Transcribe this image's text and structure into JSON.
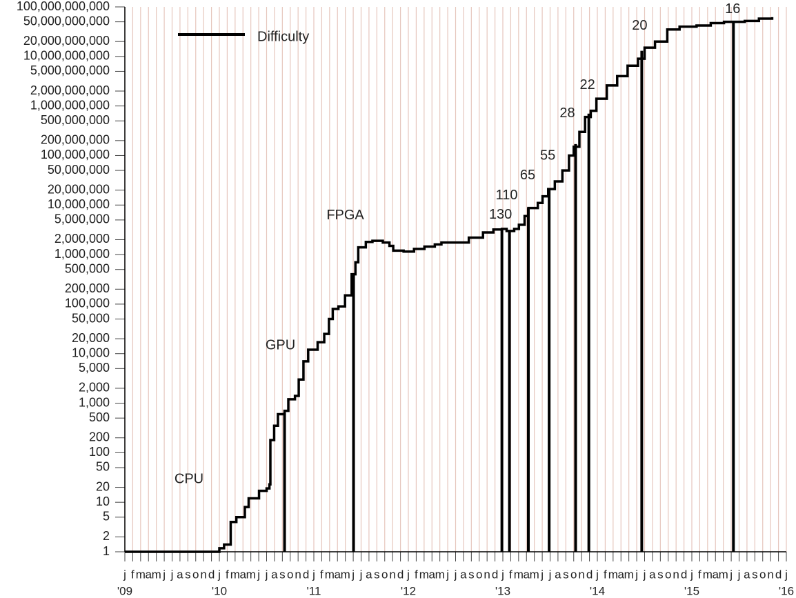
{
  "chart_data": {
    "type": "line",
    "step": "post",
    "log_y": true,
    "grid": true,
    "grid_color": "#e6c6bd",
    "legend": "upper left",
    "xlim": [
      2009,
      2016
    ],
    "ylim": [
      1,
      100000000000
    ],
    "x": [
      2009.0,
      2010.0,
      2010.05,
      2010.12,
      2010.18,
      2010.27,
      2010.31,
      2010.39,
      2010.42,
      2010.5,
      2010.53,
      2010.54,
      2010.58,
      2010.62,
      2010.69,
      2010.73,
      2010.8,
      2010.84,
      2010.89,
      2010.94,
      2011.04,
      2011.11,
      2011.16,
      2011.2,
      2011.26,
      2011.33,
      2011.4,
      2011.44,
      2011.47,
      2011.55,
      2011.62,
      2011.73,
      2011.8,
      2011.84,
      2011.95,
      2012.06,
      2012.17,
      2012.28,
      2012.35,
      2012.5,
      2012.64,
      2012.79,
      2012.9,
      2012.99,
      2013.04,
      2013.12,
      2013.17,
      2013.23,
      2013.27,
      2013.37,
      2013.42,
      2013.48,
      2013.55,
      2013.63,
      2013.7,
      2013.75,
      2013.81,
      2013.87,
      2013.93,
      2013.99,
      2014.1,
      2014.21,
      2014.32,
      2014.43,
      2014.5,
      2014.61,
      2014.74,
      2014.87,
      2015.05,
      2015.2,
      2015.34,
      2015.44,
      2015.56,
      2015.71,
      2015.85
    ],
    "series": [
      {
        "name": "Difficulty",
        "color": "#000000",
        "values": [
          1,
          1.18,
          1.4,
          4,
          5,
          8,
          12,
          12,
          17,
          19,
          23,
          180,
          350,
          600,
          700,
          1200,
          1400,
          3000,
          7000,
          12000,
          17000,
          25000,
          50000,
          80000,
          90000,
          150000,
          400000,
          700000,
          1400000,
          1800000,
          1900000,
          1750000,
          1500000,
          1200000,
          1150000,
          1300000,
          1450000,
          1600000,
          1750000,
          1750000,
          2200000,
          2800000,
          3200000,
          3300000,
          3000000,
          3300000,
          4000000,
          6000000,
          8700000,
          11000000,
          15000000,
          21000000,
          30000000,
          50000000,
          100000000,
          150000000,
          300000000,
          600000000,
          800000000,
          1400000000,
          2600000000,
          4000000000,
          6500000000,
          9000000000,
          15000000000,
          20000000000,
          35000000000,
          40000000000,
          42000000000,
          47000000000,
          50000000000,
          50000000000,
          52000000000,
          58000000000,
          62000000000
        ]
      }
    ],
    "annotations": [
      {
        "label": "CPU"
      },
      {
        "label": "GPU",
        "x": 2010.69,
        "y": 650
      },
      {
        "label": "FPGA",
        "x": 2011.42,
        "y": 400000
      },
      {
        "label": "130",
        "x": 2012.99,
        "y": 3300000
      },
      {
        "label": "110",
        "x": 2013.07,
        "y": 3100000
      },
      {
        "label": "65",
        "x": 2013.27,
        "y": 8700000
      },
      {
        "label": "55",
        "x": 2013.49,
        "y": 21000000
      },
      {
        "label": "28",
        "x": 2013.77,
        "y": 170000000
      },
      {
        "label": "22",
        "x": 2013.91,
        "y": 700000000
      },
      {
        "label": "20",
        "x": 2014.47,
        "y": 13000000000
      },
      {
        "label": "16",
        "x": 2015.44,
        "y": 50000000000
      }
    ],
    "yticks": [
      1,
      2,
      5,
      10,
      20,
      50,
      100,
      200,
      500,
      {
        "value": 1000,
        "label": "1,000"
      },
      {
        "value": 2000,
        "label": "2,000"
      },
      {
        "value": 5000,
        "label": "5,000"
      },
      {
        "value": 10000,
        "label": "10,000"
      },
      {
        "value": 20000,
        "label": "20,000"
      },
      {
        "value": 50000,
        "label": "50,000"
      },
      {
        "value": 100000,
        "label": "100,000"
      },
      {
        "value": 200000,
        "label": "200,000"
      },
      {
        "value": 500000,
        "label": "500,000"
      },
      {
        "value": 1000000,
        "label": "1,000,000"
      },
      {
        "value": 2000000,
        "label": "2,000,000"
      },
      {
        "value": 5000000,
        "label": "5,000,000"
      },
      {
        "value": 10000000,
        "label": "10,000,000"
      },
      {
        "value": 20000000,
        "label": "20,000,000"
      },
      {
        "value": 50000000,
        "label": "50,000,000"
      },
      {
        "value": 100000000,
        "label": "100,000,000"
      },
      {
        "value": 200000000,
        "label": "200,000,000"
      },
      {
        "value": 500000000,
        "label": "500,000,000"
      },
      {
        "value": 1000000000,
        "label": "1,000,000,000"
      },
      {
        "value": 2000000000,
        "label": "2,000,000,000"
      },
      {
        "value": 5000000000,
        "label": "5,000,000,000"
      },
      {
        "value": 10000000000,
        "label": "10,000,000,000"
      },
      {
        "value": 20000000000,
        "label": "20,000,000,000"
      },
      {
        "value": 50000000000,
        "label": "50,000,000,000"
      },
      {
        "value": 100000000000,
        "label": "100,000,000,000"
      }
    ],
    "xticks": [
      {
        "value": 2009,
        "label": "j"
      },
      {
        "value": 2009.0833,
        "label": "f"
      },
      {
        "value": 2009.1667,
        "label": "m"
      },
      {
        "value": 2009.25,
        "label": "a"
      },
      {
        "value": 2009.3333,
        "label": "m"
      },
      {
        "value": 2009.4167,
        "label": "j"
      },
      {
        "value": 2009.5,
        "label": "j"
      },
      {
        "value": 2009.5833,
        "label": "a"
      },
      {
        "value": 2009.6667,
        "label": "s"
      },
      {
        "value": 2009.75,
        "label": "o"
      },
      {
        "value": 2009.8333,
        "label": "n"
      },
      {
        "value": 2009.9167,
        "label": "d"
      },
      {
        "value": 2010,
        "label": "j"
      },
      {
        "value": 2010.0833,
        "label": "f"
      },
      {
        "value": 2010.1667,
        "label": "m"
      },
      {
        "value": 2010.25,
        "label": "a"
      },
      {
        "value": 2010.3333,
        "label": "m"
      },
      {
        "value": 2010.4167,
        "label": "j"
      },
      {
        "value": 2010.5,
        "label": "j"
      },
      {
        "value": 2010.5833,
        "label": "a"
      },
      {
        "value": 2010.6667,
        "label": "s"
      },
      {
        "value": 2010.75,
        "label": "o"
      },
      {
        "value": 2010.8333,
        "label": "n"
      },
      {
        "value": 2010.9167,
        "label": "d"
      },
      {
        "value": 2011,
        "label": "j"
      },
      {
        "value": 2011.0833,
        "label": "f"
      },
      {
        "value": 2011.1667,
        "label": "m"
      },
      {
        "value": 2011.25,
        "label": "a"
      },
      {
        "value": 2011.3333,
        "label": "m"
      },
      {
        "value": 2011.4167,
        "label": "j"
      },
      {
        "value": 2011.5,
        "label": "j"
      },
      {
        "value": 2011.5833,
        "label": "a"
      },
      {
        "value": 2011.6667,
        "label": "s"
      },
      {
        "value": 2011.75,
        "label": "o"
      },
      {
        "value": 2011.8333,
        "label": "n"
      },
      {
        "value": 2011.9167,
        "label": "d"
      },
      {
        "value": 2012,
        "label": "j"
      },
      {
        "value": 2012.0833,
        "label": "f"
      },
      {
        "value": 2012.1667,
        "label": "m"
      },
      {
        "value": 2012.25,
        "label": "a"
      },
      {
        "value": 2012.3333,
        "label": "m"
      },
      {
        "value": 2012.4167,
        "label": "j"
      },
      {
        "value": 2012.5,
        "label": "j"
      },
      {
        "value": 2012.5833,
        "label": "a"
      },
      {
        "value": 2012.6667,
        "label": "s"
      },
      {
        "value": 2012.75,
        "label": "o"
      },
      {
        "value": 2012.8333,
        "label": "n"
      },
      {
        "value": 2012.9167,
        "label": "d"
      },
      {
        "value": 2013,
        "label": "j"
      },
      {
        "value": 2013.0833,
        "label": "f"
      },
      {
        "value": 2013.1667,
        "label": "m"
      },
      {
        "value": 2013.25,
        "label": "a"
      },
      {
        "value": 2013.3333,
        "label": "m"
      },
      {
        "value": 2013.4167,
        "label": "j"
      },
      {
        "value": 2013.5,
        "label": "j"
      },
      {
        "value": 2013.5833,
        "label": "a"
      },
      {
        "value": 2013.6667,
        "label": "s"
      },
      {
        "value": 2013.75,
        "label": "o"
      },
      {
        "value": 2013.8333,
        "label": "n"
      },
      {
        "value": 2013.9167,
        "label": "d"
      },
      {
        "value": 2014,
        "label": "j"
      },
      {
        "value": 2014.0833,
        "label": "f"
      },
      {
        "value": 2014.1667,
        "label": "m"
      },
      {
        "value": 2014.25,
        "label": "a"
      },
      {
        "value": 2014.3333,
        "label": "m"
      },
      {
        "value": 2014.4167,
        "label": "j"
      },
      {
        "value": 2014.5,
        "label": "j"
      },
      {
        "value": 2014.5833,
        "label": "a"
      },
      {
        "value": 2014.6667,
        "label": "s"
      },
      {
        "value": 2014.75,
        "label": "o"
      },
      {
        "value": 2014.8333,
        "label": "n"
      },
      {
        "value": 2014.9167,
        "label": "d"
      },
      {
        "value": 2015,
        "label": "j"
      },
      {
        "value": 2015.0833,
        "label": "f"
      },
      {
        "value": 2015.1667,
        "label": "m"
      },
      {
        "value": 2015.25,
        "label": "a"
      },
      {
        "value": 2015.3333,
        "label": "m"
      },
      {
        "value": 2015.4167,
        "label": "j"
      },
      {
        "value": 2015.5,
        "label": "j"
      },
      {
        "value": 2015.5833,
        "label": "a"
      },
      {
        "value": 2015.6667,
        "label": "s"
      },
      {
        "value": 2015.75,
        "label": "o"
      },
      {
        "value": 2015.8333,
        "label": "n"
      },
      {
        "value": 2015.9167,
        "label": "d"
      },
      {
        "value": 2016,
        "label": "j"
      }
    ],
    "year_ticks": [
      {
        "value": 2009,
        "label": "'09"
      },
      {
        "value": 2010,
        "label": "'10"
      },
      {
        "value": 2011,
        "label": "'11"
      },
      {
        "value": 2012,
        "label": "'12"
      },
      {
        "value": 2013,
        "label": "'13"
      },
      {
        "value": 2014,
        "label": "'14"
      },
      {
        "value": 2015,
        "label": "'15"
      },
      {
        "value": 2016,
        "label": "'16"
      }
    ]
  }
}
